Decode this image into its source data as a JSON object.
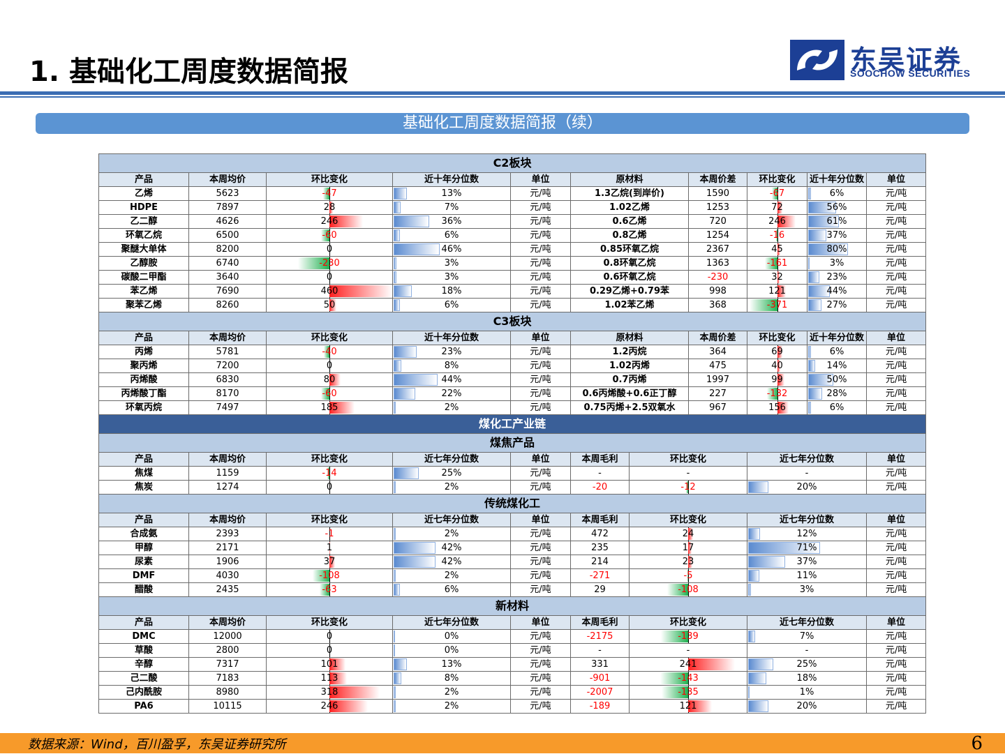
{
  "header": {
    "title": "1. 基础化工周度数据简报",
    "logo_cn": "东吴证券",
    "logo_en": "SOOCHOW SECURITIES",
    "logo_icon": "soochow-logo-icon"
  },
  "banner": "基础化工周度数据简报（续）",
  "colors": {
    "accent": "#3b6db3",
    "section": "#b8cce4",
    "subheader": "#dce6f1",
    "dark_section": "#3a5f98",
    "footer": "#f79a2a",
    "positive": "#ff0000",
    "negative": "#20b050"
  },
  "c2": {
    "title": "C2板块",
    "headers": [
      "产品",
      "本周均价",
      "环比变化",
      "近十年分位数",
      "单位",
      "原材料",
      "本周价差",
      "环比变化",
      "近十年分位数",
      "单位"
    ],
    "rows": [
      {
        "name": "乙烯",
        "price": "5623",
        "chg": "-47",
        "chg_v": -47,
        "pct": "13%",
        "pct_v": 13,
        "unit": "元/吨",
        "raw": "1.3乙烷(到岸价)",
        "spread": "1590",
        "spread_red": false,
        "schg": "-67",
        "schg_v": -67,
        "spct": "6%",
        "spct_v": 6,
        "sunit": "元/吨"
      },
      {
        "name": "HDPE",
        "price": "7897",
        "chg": "28",
        "chg_v": 28,
        "pct": "7%",
        "pct_v": 7,
        "unit": "元/吨",
        "raw": "1.02乙烯",
        "spread": "1253",
        "spread_red": false,
        "schg": "72",
        "schg_v": 72,
        "spct": "56%",
        "spct_v": 56,
        "sunit": "元/吨"
      },
      {
        "name": "乙二醇",
        "price": "4626",
        "chg": "246",
        "chg_v": 246,
        "pct": "36%",
        "pct_v": 36,
        "unit": "元/吨",
        "raw": "0.6乙烯",
        "spread": "720",
        "spread_red": false,
        "schg": "246",
        "schg_v": 246,
        "spct": "61%",
        "spct_v": 61,
        "sunit": "元/吨"
      },
      {
        "name": "环氧乙烷",
        "price": "6500",
        "chg": "-60",
        "chg_v": -60,
        "pct": "6%",
        "pct_v": 6,
        "unit": "元/吨",
        "raw": "0.8乙烯",
        "spread": "1254",
        "spread_red": false,
        "schg": "-16",
        "schg_v": -16,
        "spct": "37%",
        "spct_v": 37,
        "sunit": "元/吨"
      },
      {
        "name": "聚醚大单体",
        "price": "8200",
        "chg": "0",
        "chg_v": 0,
        "pct": "46%",
        "pct_v": 46,
        "unit": "元/吨",
        "raw": "0.85环氧乙烷",
        "spread": "2367",
        "spread_red": false,
        "schg": "45",
        "schg_v": 45,
        "spct": "80%",
        "spct_v": 80,
        "sunit": "元/吨"
      },
      {
        "name": "乙醇胺",
        "price": "6740",
        "chg": "-230",
        "chg_v": -230,
        "pct": "3%",
        "pct_v": 3,
        "unit": "元/吨",
        "raw": "0.8环氧乙烷",
        "spread": "1363",
        "spread_red": false,
        "schg": "-161",
        "schg_v": -161,
        "spct": "3%",
        "spct_v": 3,
        "sunit": "元/吨"
      },
      {
        "name": "碳酸二甲酯",
        "price": "3640",
        "chg": "0",
        "chg_v": 0,
        "pct": "3%",
        "pct_v": 3,
        "unit": "元/吨",
        "raw": "0.6环氧乙烷",
        "spread": "-230",
        "spread_red": true,
        "schg": "32",
        "schg_v": 32,
        "spct": "23%",
        "spct_v": 23,
        "sunit": "元/吨"
      },
      {
        "name": "苯乙烯",
        "price": "7690",
        "chg": "460",
        "chg_v": 460,
        "pct": "18%",
        "pct_v": 18,
        "unit": "元/吨",
        "raw": "0.29乙烯+0.79苯",
        "spread": "998",
        "spread_red": false,
        "schg": "121",
        "schg_v": 121,
        "spct": "44%",
        "spct_v": 44,
        "sunit": "元/吨"
      },
      {
        "name": "聚苯乙烯",
        "price": "8260",
        "chg": "50",
        "chg_v": 50,
        "pct": "6%",
        "pct_v": 6,
        "unit": "元/吨",
        "raw": "1.02苯乙烯",
        "spread": "368",
        "spread_red": false,
        "schg": "-371",
        "schg_v": -371,
        "spct": "27%",
        "spct_v": 27,
        "sunit": "元/吨"
      }
    ]
  },
  "c3": {
    "title": "C3板块",
    "headers": [
      "产品",
      "本周均价",
      "环比变化",
      "近十年分位数",
      "单位",
      "原材料",
      "本周价差",
      "环比变化",
      "近十年分位数",
      "单位"
    ],
    "rows": [
      {
        "name": "丙烯",
        "price": "5781",
        "chg": "-40",
        "chg_v": -40,
        "pct": "23%",
        "pct_v": 23,
        "unit": "元/吨",
        "raw": "1.2丙烷",
        "spread": "364",
        "spread_red": false,
        "schg": "69",
        "schg_v": 69,
        "spct": "6%",
        "spct_v": 6,
        "sunit": "元/吨"
      },
      {
        "name": "聚丙烯",
        "price": "7200",
        "chg": "0",
        "chg_v": 0,
        "pct": "8%",
        "pct_v": 8,
        "unit": "元/吨",
        "raw": "1.02丙烯",
        "spread": "475",
        "spread_red": false,
        "schg": "40",
        "schg_v": 40,
        "spct": "14%",
        "spct_v": 14,
        "sunit": "元/吨"
      },
      {
        "name": "丙烯酸",
        "price": "6830",
        "chg": "80",
        "chg_v": 80,
        "pct": "44%",
        "pct_v": 44,
        "unit": "元/吨",
        "raw": "0.7丙烯",
        "spread": "1997",
        "spread_red": false,
        "schg": "99",
        "schg_v": 99,
        "spct": "50%",
        "spct_v": 50,
        "sunit": "元/吨"
      },
      {
        "name": "丙烯酸丁酯",
        "price": "8170",
        "chg": "-60",
        "chg_v": -60,
        "pct": "22%",
        "pct_v": 22,
        "unit": "元/吨",
        "raw": "0.6丙烯酸+0.6正丁醇",
        "spread": "227",
        "spread_red": false,
        "schg": "-132",
        "schg_v": -132,
        "spct": "28%",
        "spct_v": 28,
        "sunit": "元/吨"
      },
      {
        "name": "环氧丙烷",
        "price": "7497",
        "chg": "185",
        "chg_v": 185,
        "pct": "2%",
        "pct_v": 2,
        "unit": "元/吨",
        "raw": "0.75丙烯+2.5双氧水",
        "spread": "967",
        "spread_red": false,
        "schg": "156",
        "schg_v": 156,
        "spct": "6%",
        "spct_v": 6,
        "sunit": "元/吨"
      }
    ]
  },
  "coal_chain_title": "煤化工产业链",
  "coal_groups": [
    {
      "title": "煤焦产品",
      "headers": [
        "产品",
        "本周均价",
        "环比变化",
        "近七年分位数",
        "单位",
        "本周毛利",
        "环比变化",
        "近七年分位数",
        "单位"
      ],
      "rows": [
        {
          "name": "焦煤",
          "price": "1159",
          "chg": "-14",
          "chg_v": -14,
          "pct": "25%",
          "pct_v": 25,
          "unit": "元/吨",
          "margin": "-",
          "margin_red": false,
          "mchg": "-",
          "mchg_v": null,
          "mpct": "-",
          "mpct_v": null,
          "munit": "元/吨"
        },
        {
          "name": "焦炭",
          "price": "1274",
          "chg": "0",
          "chg_v": 0,
          "pct": "2%",
          "pct_v": 2,
          "unit": "元/吨",
          "margin": "-20",
          "margin_red": true,
          "mchg": "-12",
          "mchg_v": -12,
          "mpct": "20%",
          "mpct_v": 20,
          "munit": "元/吨"
        }
      ]
    },
    {
      "title": "传统煤化工",
      "headers": [
        "产品",
        "本周均价",
        "环比变化",
        "近七年分位数",
        "单位",
        "本周毛利",
        "环比变化",
        "近七年分位数",
        "单位"
      ],
      "rows": [
        {
          "name": "合成氨",
          "price": "2393",
          "chg": "-1",
          "chg_v": -1,
          "pct": "2%",
          "pct_v": 2,
          "unit": "元/吨",
          "margin": "472",
          "margin_red": false,
          "mchg": "24",
          "mchg_v": 24,
          "mpct": "12%",
          "mpct_v": 12,
          "munit": "元/吨"
        },
        {
          "name": "甲醇",
          "price": "2171",
          "chg": "1",
          "chg_v": 1,
          "pct": "42%",
          "pct_v": 42,
          "unit": "元/吨",
          "margin": "235",
          "margin_red": false,
          "mchg": "17",
          "mchg_v": 17,
          "mpct": "71%",
          "mpct_v": 71,
          "munit": "元/吨"
        },
        {
          "name": "尿素",
          "price": "1906",
          "chg": "37",
          "chg_v": 37,
          "pct": "42%",
          "pct_v": 42,
          "unit": "元/吨",
          "margin": "214",
          "margin_red": false,
          "mchg": "23",
          "mchg_v": 23,
          "mpct": "37%",
          "mpct_v": 37,
          "munit": "元/吨"
        },
        {
          "name": "DMF",
          "price": "4030",
          "chg": "-108",
          "chg_v": -108,
          "pct": "2%",
          "pct_v": 2,
          "unit": "元/吨",
          "margin": "-271",
          "margin_red": true,
          "mchg": "-5",
          "mchg_v": -5,
          "mpct": "11%",
          "mpct_v": 11,
          "munit": "元/吨"
        },
        {
          "name": "醋酸",
          "price": "2435",
          "chg": "-63",
          "chg_v": -63,
          "pct": "6%",
          "pct_v": 6,
          "unit": "元/吨",
          "margin": "29",
          "margin_red": false,
          "mchg": "-108",
          "mchg_v": -108,
          "mpct": "3%",
          "mpct_v": 3,
          "munit": "元/吨"
        }
      ]
    },
    {
      "title": "新材料",
      "headers": [
        "产品",
        "本周均价",
        "环比变化",
        "近七年分位数",
        "单位",
        "本周毛利",
        "环比变化",
        "近七年分位数",
        "单位"
      ],
      "rows": [
        {
          "name": "DMC",
          "price": "12000",
          "chg": "0",
          "chg_v": 0,
          "pct": "0%",
          "pct_v": 0,
          "unit": "元/吨",
          "margin": "-2175",
          "margin_red": true,
          "mchg": "-139",
          "mchg_v": -139,
          "mpct": "7%",
          "mpct_v": 7,
          "munit": "元/吨"
        },
        {
          "name": "草酸",
          "price": "2800",
          "chg": "0",
          "chg_v": 0,
          "pct": "0%",
          "pct_v": 0,
          "unit": "元/吨",
          "margin": "-",
          "margin_red": false,
          "mchg": "-",
          "mchg_v": null,
          "mpct": "-",
          "mpct_v": null,
          "munit": "元/吨"
        },
        {
          "name": "辛醇",
          "price": "7317",
          "chg": "101",
          "chg_v": 101,
          "pct": "13%",
          "pct_v": 13,
          "unit": "元/吨",
          "margin": "331",
          "margin_red": false,
          "mchg": "241",
          "mchg_v": 241,
          "mpct": "25%",
          "mpct_v": 25,
          "munit": "元/吨"
        },
        {
          "name": "己二酸",
          "price": "7183",
          "chg": "113",
          "chg_v": 113,
          "pct": "8%",
          "pct_v": 8,
          "unit": "元/吨",
          "margin": "-901",
          "margin_red": true,
          "mchg": "-143",
          "mchg_v": -143,
          "mpct": "18%",
          "mpct_v": 18,
          "munit": "元/吨"
        },
        {
          "name": "己内酰胺",
          "price": "8980",
          "chg": "318",
          "chg_v": 318,
          "pct": "2%",
          "pct_v": 2,
          "unit": "元/吨",
          "margin": "-2007",
          "margin_red": true,
          "mchg": "-135",
          "mchg_v": -135,
          "mpct": "1%",
          "mpct_v": 1,
          "munit": "元/吨"
        },
        {
          "name": "PA6",
          "price": "10115",
          "chg": "246",
          "chg_v": 246,
          "pct": "2%",
          "pct_v": 2,
          "unit": "元/吨",
          "margin": "-189",
          "margin_red": true,
          "mchg": "121",
          "mchg_v": 121,
          "mpct": "20%",
          "mpct_v": 20,
          "munit": "元/吨"
        }
      ]
    }
  ],
  "footer": {
    "source": "数据来源：Wind，百川盈孚，东吴证券研究所",
    "page": "6"
  }
}
